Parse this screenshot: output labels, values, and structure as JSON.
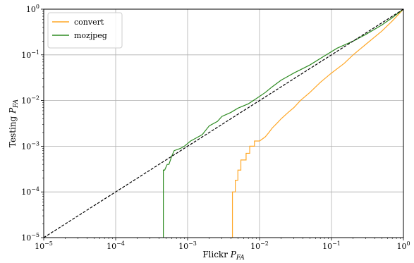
{
  "chart_data": {
    "type": "line",
    "xlabel": "Flickr P_FA",
    "ylabel": "Testing P_FA",
    "xscale": "log",
    "yscale": "log",
    "xlim": [
      1e-05,
      1
    ],
    "ylim": [
      1e-05,
      1
    ],
    "grid": true,
    "legend_placement": "top-left",
    "x_ticks": [
      {
        "base": "10",
        "exp": "−5",
        "value": 1e-05
      },
      {
        "base": "10",
        "exp": "−4",
        "value": 0.0001
      },
      {
        "base": "10",
        "exp": "−3",
        "value": 0.001
      },
      {
        "base": "10",
        "exp": "−2",
        "value": 0.01
      },
      {
        "base": "10",
        "exp": "−1",
        "value": 0.1
      },
      {
        "base": "10",
        "exp": "0",
        "value": 1
      }
    ],
    "y_ticks": [
      {
        "base": "10",
        "exp": "−5",
        "value": 1e-05
      },
      {
        "base": "10",
        "exp": "−4",
        "value": 0.0001
      },
      {
        "base": "10",
        "exp": "−3",
        "value": 0.001
      },
      {
        "base": "10",
        "exp": "−2",
        "value": 0.01
      },
      {
        "base": "10",
        "exp": "−1",
        "value": 0.1
      },
      {
        "base": "10",
        "exp": "0",
        "value": 1
      }
    ],
    "series": [
      {
        "name": "convert",
        "color": "#ffa726",
        "points": [
          [
            0.0042,
            1e-05
          ],
          [
            0.0042,
            0.0001
          ],
          [
            0.0046,
            0.0001
          ],
          [
            0.0046,
            0.00018
          ],
          [
            0.005,
            0.00018
          ],
          [
            0.005,
            0.0003
          ],
          [
            0.0055,
            0.0003
          ],
          [
            0.0055,
            0.0005
          ],
          [
            0.0065,
            0.0005
          ],
          [
            0.0065,
            0.0007
          ],
          [
            0.0073,
            0.0007
          ],
          [
            0.0073,
            0.001
          ],
          [
            0.0085,
            0.001
          ],
          [
            0.0085,
            0.0013
          ],
          [
            0.01,
            0.0013
          ],
          [
            0.012,
            0.0016
          ],
          [
            0.0135,
            0.002
          ],
          [
            0.015,
            0.0025
          ],
          [
            0.0175,
            0.0032
          ],
          [
            0.02,
            0.004
          ],
          [
            0.025,
            0.0055
          ],
          [
            0.03,
            0.007
          ],
          [
            0.037,
            0.01
          ],
          [
            0.05,
            0.015
          ],
          [
            0.07,
            0.025
          ],
          [
            0.1,
            0.04
          ],
          [
            0.15,
            0.065
          ],
          [
            0.2,
            0.1
          ],
          [
            0.3,
            0.17
          ],
          [
            0.5,
            0.33
          ],
          [
            0.7,
            0.55
          ],
          [
            1,
            1
          ]
        ]
      },
      {
        "name": "mozjpeg",
        "color": "#2e8b22",
        "points": [
          [
            0.00046,
            1e-05
          ],
          [
            0.00046,
            0.0003
          ],
          [
            0.00048,
            0.0003
          ],
          [
            0.00052,
            0.0004
          ],
          [
            0.00055,
            0.0004
          ],
          [
            0.0006,
            0.0006
          ],
          [
            0.00065,
            0.0008
          ],
          [
            0.0008,
            0.0009
          ],
          [
            0.0009,
            0.001
          ],
          [
            0.0011,
            0.0013
          ],
          [
            0.0013,
            0.0015
          ],
          [
            0.0016,
            0.0018
          ],
          [
            0.002,
            0.0028
          ],
          [
            0.0026,
            0.0035
          ],
          [
            0.003,
            0.0045
          ],
          [
            0.004,
            0.0055
          ],
          [
            0.005,
            0.0068
          ],
          [
            0.007,
            0.0085
          ],
          [
            0.009,
            0.011
          ],
          [
            0.012,
            0.015
          ],
          [
            0.015,
            0.02
          ],
          [
            0.02,
            0.028
          ],
          [
            0.025,
            0.034
          ],
          [
            0.03,
            0.04
          ],
          [
            0.05,
            0.06
          ],
          [
            0.08,
            0.095
          ],
          [
            0.12,
            0.14
          ],
          [
            0.2,
            0.2
          ],
          [
            0.3,
            0.28
          ],
          [
            0.5,
            0.45
          ],
          [
            0.7,
            0.65
          ],
          [
            1,
            1
          ]
        ]
      },
      {
        "name": "",
        "color": "#000000",
        "dashed": true,
        "points": [
          [
            1e-05,
            1e-05
          ],
          [
            1,
            1
          ]
        ]
      }
    ]
  }
}
